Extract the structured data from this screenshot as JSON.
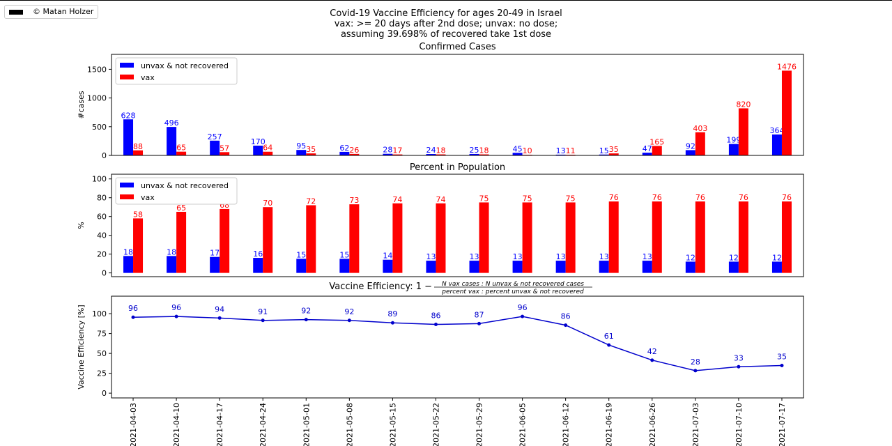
{
  "credit": "© Matan Holzer",
  "title_lines": [
    "Covid-19 Vaccine Efficiency for ages 20-49 in Israel",
    "vax: >= 20 days after 2nd dose; unvax: no dose;",
    "assuming 39.698% of recovered take 1st dose"
  ],
  "colors": {
    "unvax": "#0000ff",
    "vax": "#ff0000",
    "line": "#0000cc"
  },
  "chart_data": [
    {
      "type": "bar",
      "title": "Confirmed Cases",
      "ylabel": "#cases",
      "ylim": [
        0,
        1760
      ],
      "yticks": [
        0,
        500,
        1000,
        1500
      ],
      "categories": [
        "2021-04-03",
        "2021-04-10",
        "2021-04-17",
        "2021-04-24",
        "2021-05-01",
        "2021-05-08",
        "2021-05-15",
        "2021-05-22",
        "2021-05-29",
        "2021-06-05",
        "2021-06-12",
        "2021-06-19",
        "2021-06-26",
        "2021-07-03",
        "2021-07-10",
        "2021-07-17"
      ],
      "legend": "top-left",
      "series": [
        {
          "name": "unvax & not recovered",
          "values": [
            628,
            496,
            257,
            170,
            95,
            62,
            28,
            24,
            25,
            45,
            13,
            15,
            47,
            92,
            199,
            364
          ]
        },
        {
          "name": "vax",
          "values": [
            88,
            65,
            57,
            64,
            35,
            26,
            17,
            18,
            18,
            10,
            11,
            35,
            165,
            403,
            820,
            1476
          ]
        }
      ]
    },
    {
      "type": "bar",
      "title": "Percent in Population",
      "ylabel": "%",
      "ylim": [
        -4,
        105
      ],
      "yticks": [
        0,
        20,
        40,
        60,
        80,
        100
      ],
      "categories": [
        "2021-04-03",
        "2021-04-10",
        "2021-04-17",
        "2021-04-24",
        "2021-05-01",
        "2021-05-08",
        "2021-05-15",
        "2021-05-22",
        "2021-05-29",
        "2021-06-05",
        "2021-06-12",
        "2021-06-19",
        "2021-06-26",
        "2021-07-03",
        "2021-07-10",
        "2021-07-17"
      ],
      "legend": "top-left",
      "series": [
        {
          "name": "unvax & not recovered",
          "values": [
            18,
            18,
            17,
            16,
            15,
            15,
            14,
            13,
            13,
            13,
            13,
            13,
            13,
            12,
            12,
            12
          ]
        },
        {
          "name": "vax",
          "values": [
            58,
            65,
            68,
            70,
            72,
            73,
            74,
            74,
            75,
            75,
            75,
            76,
            76,
            76,
            76,
            76
          ]
        }
      ]
    },
    {
      "type": "line",
      "title_text": "Vaccine Efficiency: 1 −",
      "title_frac_num": "N vax cases  :  N unvax & not recovered cases",
      "title_frac_den": "percent vax  :  percent unvax & not recovered",
      "ylabel": "Vaccine Efficiency [%]",
      "ylim": [
        -6,
        122
      ],
      "yticks": [
        0,
        25,
        50,
        75,
        100
      ],
      "x": [
        "2021-04-03",
        "2021-04-10",
        "2021-04-17",
        "2021-04-24",
        "2021-05-01",
        "2021-05-08",
        "2021-05-15",
        "2021-05-22",
        "2021-05-29",
        "2021-06-05",
        "2021-06-12",
        "2021-06-19",
        "2021-06-26",
        "2021-07-03",
        "2021-07-10",
        "2021-07-17"
      ],
      "values": [
        95.5,
        96.5,
        94.5,
        91.5,
        92.5,
        91.5,
        88.5,
        86.5,
        87.5,
        96.5,
        85.5,
        60.5,
        41.5,
        28.3,
        33.2,
        34.8
      ],
      "labels": [
        "96",
        "96",
        "94",
        "91",
        "92",
        "92",
        "89",
        "86",
        "87",
        "96",
        "86",
        "61",
        "42",
        "28",
        "33",
        "35"
      ]
    }
  ]
}
